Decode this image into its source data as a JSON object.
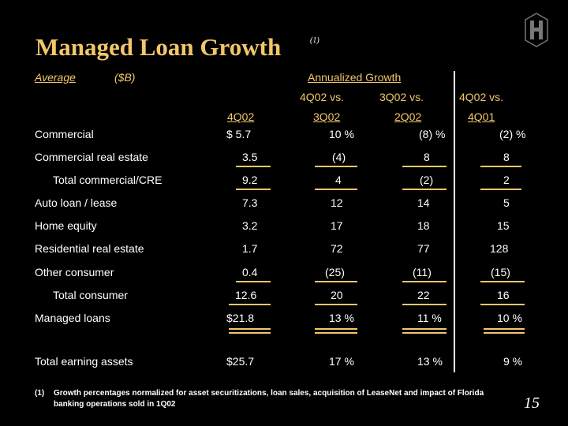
{
  "title": "Managed Loan Growth",
  "title_footnote": "(1)",
  "header": {
    "average": "Average",
    "unit": "($B)",
    "annualized_growth": "Annualized Growth",
    "col_4q02": "4Q02",
    "col1_top": "4Q02 vs.",
    "col1_bottom": "3Q02",
    "col2_top": "3Q02 vs.",
    "col2_bottom": "2Q02",
    "col3_top": "4Q02 vs.",
    "col3_bottom": "4Q01"
  },
  "rows": [
    {
      "label": "Commercial",
      "v": "$ 5.7",
      "g1": "10 %",
      "g2": "(8) %",
      "g3": "(2) %"
    },
    {
      "label": "Commercial real estate",
      "v": "3.5",
      "g1": "(4)",
      "g2": "8",
      "g3": "8"
    },
    {
      "label": "Total commercial/CRE",
      "v": "9.2",
      "g1": "4",
      "g2": "(2)",
      "g3": "2"
    },
    {
      "label": "Auto loan / lease",
      "v": "7.3",
      "g1": "12",
      "g2": "14",
      "g3": "5"
    },
    {
      "label": "Home equity",
      "v": "3.2",
      "g1": "17",
      "g2": "18",
      "g3": "15"
    },
    {
      "label": "Residential real estate",
      "v": "1.7",
      "g1": "72",
      "g2": "77",
      "g3": "128"
    },
    {
      "label": "Other consumer",
      "v": "0.4",
      "g1": "(25)",
      "g2": "(11)",
      "g3": "(15)"
    },
    {
      "label": "Total consumer",
      "v": "12.6",
      "g1": "20",
      "g2": "22",
      "g3": "16"
    },
    {
      "label": "Managed loans",
      "v": "$21.8",
      "g1": "13 %",
      "g2": "11 %",
      "g3": "10 %"
    },
    {
      "label": "Total earning assets",
      "v": "$25.7",
      "g1": "17 %",
      "g2": "13 %",
      "g3": "9 %"
    }
  ],
  "footnote": {
    "marker": "(1)",
    "line1": "Growth percentages normalized for asset securitizations, loan sales, acquisition of LeaseNet and impact of Florida",
    "line2": "banking operations sold in 1Q02"
  },
  "page_number": "15",
  "colors": {
    "accent": "#f2c76a",
    "background": "#000000",
    "text": "#ffffff"
  },
  "logo_icon": "huntington-logo-icon"
}
